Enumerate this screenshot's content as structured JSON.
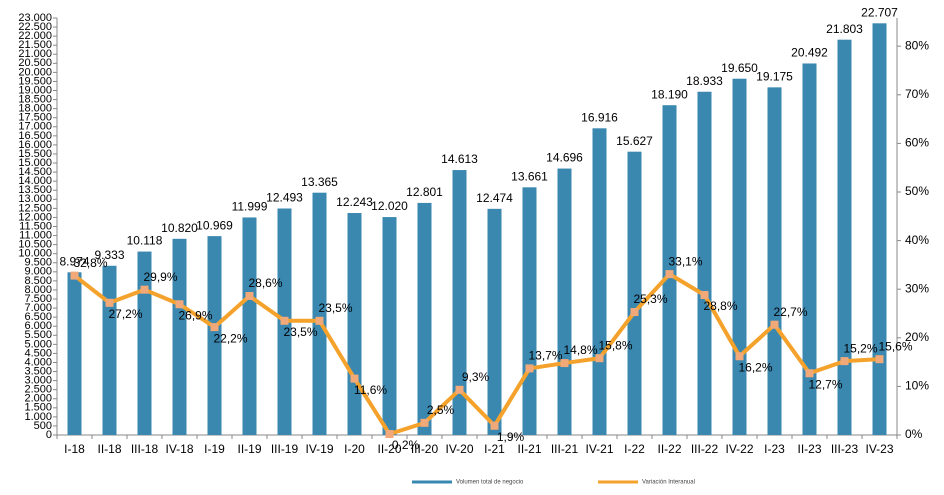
{
  "chart_data": {
    "type": "bar",
    "categories": [
      "I-18",
      "II-18",
      "III-18",
      "IV-18",
      "I-19",
      "II-19",
      "III-19",
      "IV-19",
      "I-20",
      "II-20",
      "III-20",
      "IV-20",
      "I-21",
      "II-21",
      "III-21",
      "IV-21",
      "I-22",
      "II-22",
      "III-22",
      "IV-22",
      "I-23",
      "II-23",
      "III-23",
      "IV-23"
    ],
    "series": [
      {
        "name": "Volumen total de negocio",
        "color": "#3a87b0",
        "type": "bar",
        "values": [
          8974,
          9333,
          10118,
          10820,
          10969,
          11999,
          12493,
          13365,
          12243,
          12020,
          12801,
          14613,
          12474,
          13661,
          14696,
          16916,
          15627,
          18190,
          18933,
          19650,
          19175,
          20492,
          21803,
          22707
        ],
        "value_labels": [
          "8.974",
          "9.333",
          "10.118",
          "10.820",
          "10.969",
          "11.999",
          "12.493",
          "13.365",
          "12.243",
          "12.020",
          "12.801",
          "14.613",
          "12.474",
          "13.661",
          "14.696",
          "16.916",
          "15.627",
          "18.190",
          "18.933",
          "19.650",
          "19.175",
          "20.492",
          "21.803",
          "22.707"
        ]
      },
      {
        "name": "Variación Interanual",
        "color": "#f4a22b",
        "marker_color": "#f2a97a",
        "type": "line",
        "axis": "y2",
        "values": [
          32.8,
          27.2,
          29.9,
          26.9,
          22.2,
          28.6,
          23.5,
          23.5,
          11.6,
          0.2,
          2.5,
          9.3,
          1.9,
          13.7,
          14.8,
          15.8,
          25.3,
          33.1,
          28.8,
          16.2,
          22.7,
          12.7,
          15.2,
          15.6
        ],
        "value_labels": [
          "32,8%",
          "27,2%",
          "29,9%",
          "26,9%",
          "22,2%",
          "28,6%",
          "23,5%",
          "23,5%",
          "11,6%",
          "0,2%",
          "2,5%",
          "9,3%",
          "1,9%",
          "13,7%",
          "14,8%",
          "15,8%",
          "25,3%",
          "33,1%",
          "28,8%",
          "16,2%",
          "22,7%",
          "12,7%",
          "15,2%",
          "15,6%"
        ]
      }
    ],
    "ylim": [
      0,
      23000
    ],
    "yticks": [
      0,
      500,
      {
        "value": 1000,
        "label": "1.000"
      },
      {
        "value": 1500,
        "label": "1.500"
      },
      {
        "value": 2000,
        "label": "2.000"
      },
      {
        "value": 2500,
        "label": "2.500"
      },
      {
        "value": 3000,
        "label": "3.000"
      },
      {
        "value": 3500,
        "label": "3.500"
      },
      {
        "value": 4000,
        "label": "4.000"
      },
      {
        "value": 4500,
        "label": "4.500"
      },
      {
        "value": 5000,
        "label": "5.000"
      },
      {
        "value": 5500,
        "label": "5.500"
      },
      {
        "value": 6000,
        "label": "6.000"
      },
      {
        "value": 6500,
        "label": "6.500"
      },
      {
        "value": 7000,
        "label": "7.000"
      },
      {
        "value": 7500,
        "label": "7.500"
      },
      {
        "value": 8000,
        "label": "8.000"
      },
      {
        "value": 8500,
        "label": "8.500"
      },
      {
        "value": 9000,
        "label": "9.000"
      },
      {
        "value": 9500,
        "label": "9.500"
      },
      {
        "value": 10000,
        "label": "10.000"
      },
      {
        "value": 10500,
        "label": "10.500"
      },
      {
        "value": 11000,
        "label": "11.000"
      },
      {
        "value": 11500,
        "label": "11.500"
      },
      {
        "value": 12000,
        "label": "12.000"
      },
      {
        "value": 12500,
        "label": "12.500"
      },
      {
        "value": 13000,
        "label": "13.000"
      },
      {
        "value": 13500,
        "label": "13.500"
      },
      {
        "value": 14000,
        "label": "14.000"
      },
      {
        "value": 14500,
        "label": "14.500"
      },
      {
        "value": 15000,
        "label": "15.000"
      },
      {
        "value": 15500,
        "label": "15.500"
      },
      {
        "value": 16000,
        "label": "16.000"
      },
      {
        "value": 16500,
        "label": "16.500"
      },
      {
        "value": 17000,
        "label": "17.000"
      },
      {
        "value": 17500,
        "label": "17.500"
      },
      {
        "value": 18000,
        "label": "18.000"
      },
      {
        "value": 18500,
        "label": "18.500"
      },
      {
        "value": 19000,
        "label": "19.000"
      },
      {
        "value": 19500,
        "label": "19.500"
      },
      {
        "value": 20000,
        "label": "20.000"
      },
      {
        "value": 20500,
        "label": "20.500"
      },
      {
        "value": 21000,
        "label": "21.000"
      },
      {
        "value": 21500,
        "label": "21.500"
      },
      {
        "value": 22000,
        "label": "22.000"
      },
      {
        "value": 22500,
        "label": "22.500"
      },
      {
        "value": 23000,
        "label": "23.000"
      }
    ],
    "y2lim": [
      0,
      85.8
    ],
    "y2ticks": [
      {
        "value": 0,
        "label": "0%"
      },
      {
        "value": 10,
        "label": "10%"
      },
      {
        "value": 20,
        "label": "20%"
      },
      {
        "value": 30,
        "label": "30%"
      },
      {
        "value": 40,
        "label": "40%"
      },
      {
        "value": 50,
        "label": "50%"
      },
      {
        "value": 60,
        "label": "60%"
      },
      {
        "value": 70,
        "label": "70%"
      },
      {
        "value": 80,
        "label": "80%"
      }
    ],
    "legend": "bottom"
  }
}
